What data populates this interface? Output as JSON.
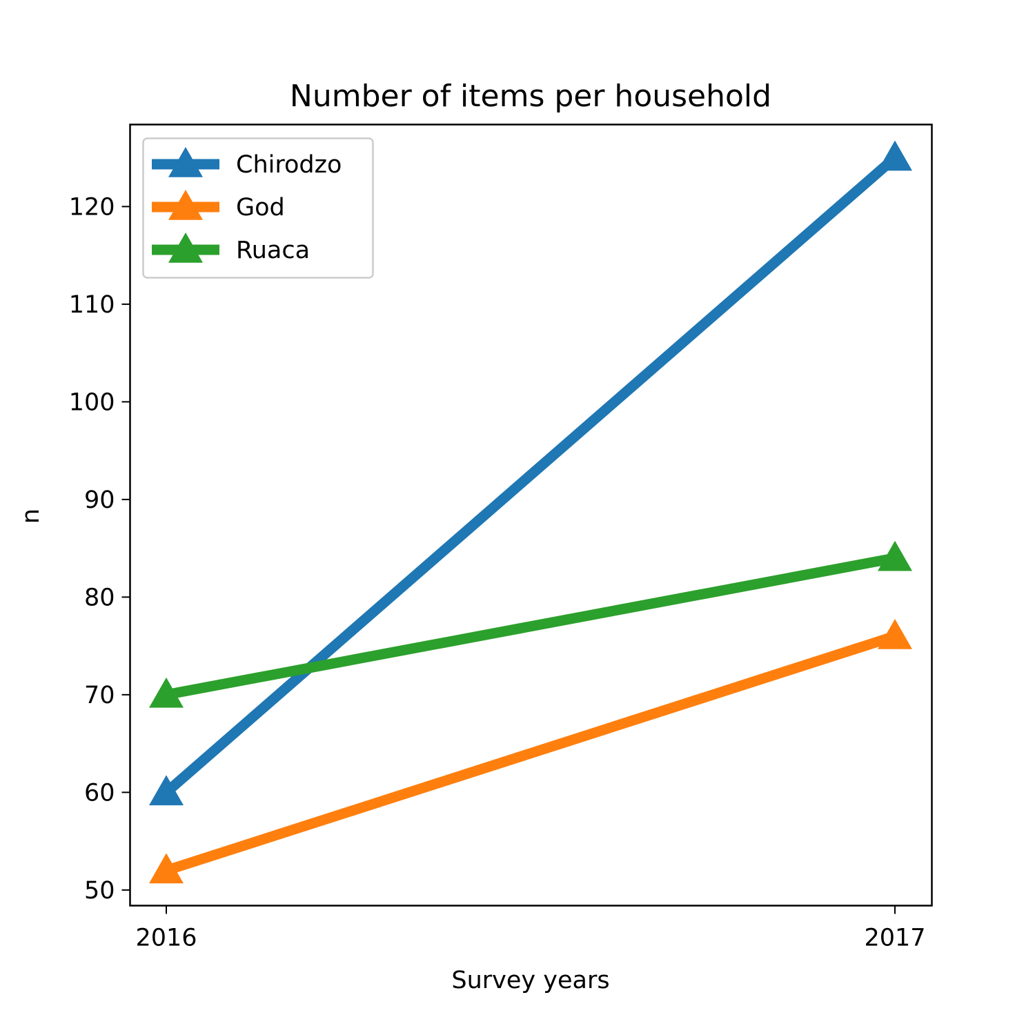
{
  "chart_data": {
    "type": "line",
    "title": "Number of items per household",
    "xlabel": "Survey years",
    "ylabel": "n",
    "x": [
      "2016",
      "2017"
    ],
    "ylim": [
      48.4,
      128.4
    ],
    "yticks": [
      50,
      60,
      70,
      80,
      90,
      100,
      110,
      120
    ],
    "grid": false,
    "legend": "top-left",
    "marker": "triangle",
    "series": [
      {
        "name": "Chirodzo",
        "values": [
          60,
          125
        ],
        "color": "#1f77b4"
      },
      {
        "name": "God",
        "values": [
          52,
          76
        ],
        "color": "#ff7f0e"
      },
      {
        "name": "Ruaca",
        "values": [
          70,
          84
        ],
        "color": "#2ca02c"
      }
    ]
  }
}
